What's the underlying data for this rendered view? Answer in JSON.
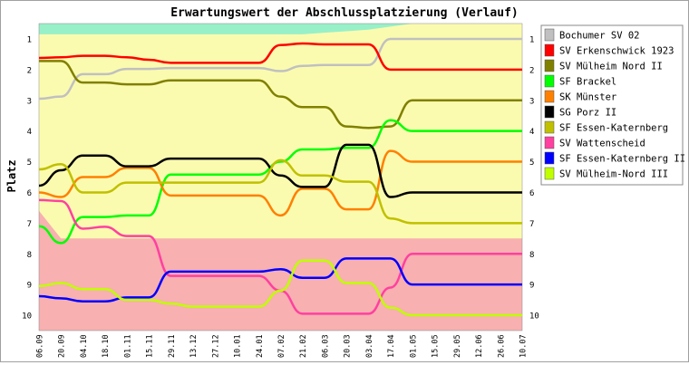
{
  "chart_data": {
    "type": "line",
    "title": "Erwartungswert der Abschlussplatzierung (Verlauf)",
    "xlabel": "",
    "ylabel": "Platz",
    "ylim": [
      0.5,
      10.5
    ],
    "y_ticks": [
      "1",
      "2",
      "3",
      "4",
      "5",
      "6",
      "7",
      "8",
      "9",
      "10"
    ],
    "y_reversed": true,
    "grid": false,
    "legend_position": "right",
    "x": [
      "06.09",
      "20.09",
      "04.10",
      "18.10",
      "01.11",
      "15.11",
      "29.11",
      "13.12",
      "27.12",
      "10.01",
      "24.01",
      "07.02",
      "21.02",
      "06.03",
      "20.03",
      "03.04",
      "17.04",
      "01.05",
      "15.05",
      "29.05",
      "12.06",
      "26.06",
      "10.07"
    ],
    "zones": [
      {
        "name": "top",
        "color": "#98f0c8"
      },
      {
        "name": "middle",
        "color": "#fbfbb0"
      },
      {
        "name": "relegation",
        "color": "#f8b0b0"
      }
    ],
    "zone_top_boundary": [
      0.85,
      0.85,
      0.85,
      0.85,
      0.85,
      0.85,
      0.85,
      0.85,
      0.85,
      0.85,
      0.85,
      0.85,
      0.85,
      0.8,
      0.75,
      0.7,
      0.6,
      0.5,
      0.5,
      0.5,
      0.5,
      0.5,
      0.5
    ],
    "zone_relegation_boundary": [
      6.6,
      7.5,
      7.5,
      7.5,
      7.5,
      7.5,
      7.5,
      7.5,
      7.5,
      7.5,
      7.5,
      7.5,
      7.5,
      7.5,
      7.5,
      7.5,
      7.5,
      7.5,
      7.5,
      7.5,
      7.5,
      7.5,
      7.5
    ],
    "series": [
      {
        "name": "Bochumer SV 02",
        "color": "#c0c0c0",
        "values": [
          2.95,
          2.88,
          2.15,
          2.15,
          1.98,
          1.98,
          1.95,
          1.95,
          1.95,
          1.95,
          1.95,
          2.05,
          1.88,
          1.85,
          1.85,
          1.85,
          1.0,
          1.0,
          1.0,
          1.0,
          1.0,
          1.0,
          1.0
        ]
      },
      {
        "name": "SV Erkenschwick 1923",
        "color": "#ff0000",
        "values": [
          1.62,
          1.6,
          1.55,
          1.55,
          1.6,
          1.68,
          1.78,
          1.78,
          1.78,
          1.78,
          1.78,
          1.2,
          1.15,
          1.18,
          1.18,
          1.18,
          2.0,
          2.0,
          2.0,
          2.0,
          2.0,
          2.0,
          2.0
        ]
      },
      {
        "name": "SV Mülheim Nord II",
        "color": "#808000",
        "values": [
          1.72,
          1.72,
          2.42,
          2.42,
          2.48,
          2.48,
          2.35,
          2.35,
          2.35,
          2.35,
          2.35,
          2.88,
          3.22,
          3.22,
          3.85,
          3.9,
          3.85,
          3.0,
          3.0,
          3.0,
          3.0,
          3.0,
          3.0
        ]
      },
      {
        "name": "SF Brackel",
        "color": "#00ff00",
        "values": [
          7.1,
          7.65,
          6.8,
          6.8,
          6.75,
          6.75,
          5.42,
          5.42,
          5.42,
          5.42,
          5.42,
          5.0,
          4.6,
          4.6,
          4.55,
          4.55,
          3.65,
          4.0,
          4.0,
          4.0,
          4.0,
          4.0,
          4.0
        ]
      },
      {
        "name": "SK Münster",
        "color": "#ff8000",
        "values": [
          6.0,
          6.15,
          5.5,
          5.5,
          5.2,
          5.2,
          6.1,
          6.1,
          6.1,
          6.1,
          6.1,
          6.75,
          5.88,
          5.88,
          6.55,
          6.55,
          4.65,
          5.0,
          5.0,
          5.0,
          5.0,
          5.0,
          5.0
        ]
      },
      {
        "name": "SG Porz II",
        "color": "#000000",
        "values": [
          5.78,
          5.28,
          4.8,
          4.8,
          5.15,
          5.15,
          4.9,
          4.9,
          4.9,
          4.9,
          4.9,
          5.45,
          5.82,
          5.82,
          4.45,
          4.45,
          6.15,
          6.0,
          6.0,
          6.0,
          6.0,
          6.0,
          6.0
        ]
      },
      {
        "name": "SF Essen-Katernberg",
        "color": "#c0c000",
        "values": [
          5.25,
          5.08,
          6.0,
          6.0,
          5.68,
          5.68,
          5.68,
          5.68,
          5.68,
          5.68,
          5.68,
          4.95,
          5.45,
          5.45,
          5.65,
          5.65,
          6.85,
          7.0,
          7.0,
          7.0,
          7.0,
          7.0,
          7.0
        ]
      },
      {
        "name": "SV Wattenscheid",
        "color": "#ff40a0",
        "values": [
          6.25,
          6.28,
          7.18,
          7.12,
          7.42,
          7.42,
          8.72,
          8.72,
          8.72,
          8.72,
          8.72,
          9.2,
          9.95,
          9.95,
          9.95,
          9.95,
          9.1,
          8.0,
          8.0,
          8.0,
          8.0,
          8.0,
          8.0
        ]
      },
      {
        "name": "SF Essen-Katernberg II",
        "color": "#0000ff",
        "values": [
          9.38,
          9.45,
          9.55,
          9.55,
          9.42,
          9.42,
          8.58,
          8.58,
          8.58,
          8.58,
          8.58,
          8.5,
          8.78,
          8.78,
          8.15,
          8.15,
          8.15,
          9.0,
          9.0,
          9.0,
          9.0,
          9.0,
          9.0
        ]
      },
      {
        "name": "SV Mülheim-Nord III",
        "color": "#c0ff00",
        "values": [
          9.05,
          8.95,
          9.15,
          9.15,
          9.5,
          9.5,
          9.62,
          9.72,
          9.72,
          9.72,
          9.72,
          9.2,
          8.22,
          8.22,
          8.95,
          8.95,
          9.75,
          10.0,
          10.0,
          10.0,
          10.0,
          10.0,
          10.0
        ]
      }
    ]
  }
}
